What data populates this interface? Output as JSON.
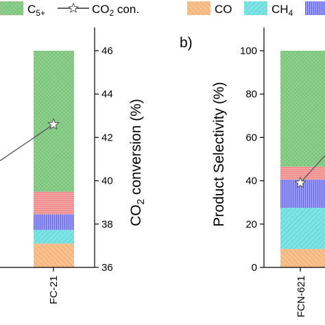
{
  "legend": {
    "items": [
      {
        "label": "C5+",
        "swatch_color": "#8fd18f",
        "kind": "hatch"
      },
      {
        "label": "CO2 con.",
        "kind": "line-star"
      },
      {
        "label": "CO",
        "swatch_color": "#f6b37a",
        "kind": "hatch"
      },
      {
        "label": "CH4",
        "swatch_color": "#6fdfe0",
        "kind": "hatch"
      },
      {
        "label": "",
        "swatch_color": "#8080f0",
        "kind": "hatch"
      }
    ]
  },
  "chart_data": [
    {
      "panel": "a",
      "type": "bar",
      "stacked": true,
      "categories": [
        "FC-21"
      ],
      "y_right_label": "CO2 conversion (%)",
      "y_right_lim": [
        36,
        46
      ],
      "y_right_ticks": [
        36,
        38,
        40,
        42,
        44,
        46
      ],
      "series": [
        {
          "name": "CO",
          "color": "#f6b37a",
          "bottom": 0,
          "top": 11
        },
        {
          "name": "CH4",
          "color": "#6fdfe0",
          "bottom": 11,
          "top": 17.3
        },
        {
          "name": "",
          "color": "#8080f0",
          "bottom": 17.3,
          "top": 24.5
        },
        {
          "name": "",
          "color": "#f08a8a",
          "bottom": 24.5,
          "top": 34.9
        },
        {
          "name": "C5+",
          "color": "#8fd18f",
          "bottom": 34.9,
          "top": 100
        }
      ],
      "stack_axis_lim": [
        0,
        100
      ],
      "co2_conversion": {
        "name": "CO2 con.",
        "x": "FC-21",
        "value": 42.6
      }
    },
    {
      "panel": "b",
      "label": "b)",
      "type": "bar",
      "stacked": true,
      "categories": [
        "FCN-621"
      ],
      "ylabel": "Product Selectivity (%)",
      "ylim": [
        0,
        100
      ],
      "yticks": [
        0,
        20,
        40,
        60,
        80,
        100
      ],
      "series": [
        {
          "name": "CO",
          "color": "#f6b37a",
          "bottom": 0,
          "top": 8.5
        },
        {
          "name": "CH4",
          "color": "#6fdfe0",
          "bottom": 8.5,
          "top": 27.5
        },
        {
          "name": "",
          "color": "#8080f0",
          "bottom": 27.5,
          "top": 40.5
        },
        {
          "name": "",
          "color": "#f08a8a",
          "bottom": 40.5,
          "top": 46.5
        },
        {
          "name": "C5+",
          "color": "#8fd18f",
          "bottom": 46.5,
          "top": 100
        }
      ],
      "co2_conversion": {
        "name": "CO2 con.",
        "x": "FCN-621",
        "value": 39
      }
    }
  ]
}
